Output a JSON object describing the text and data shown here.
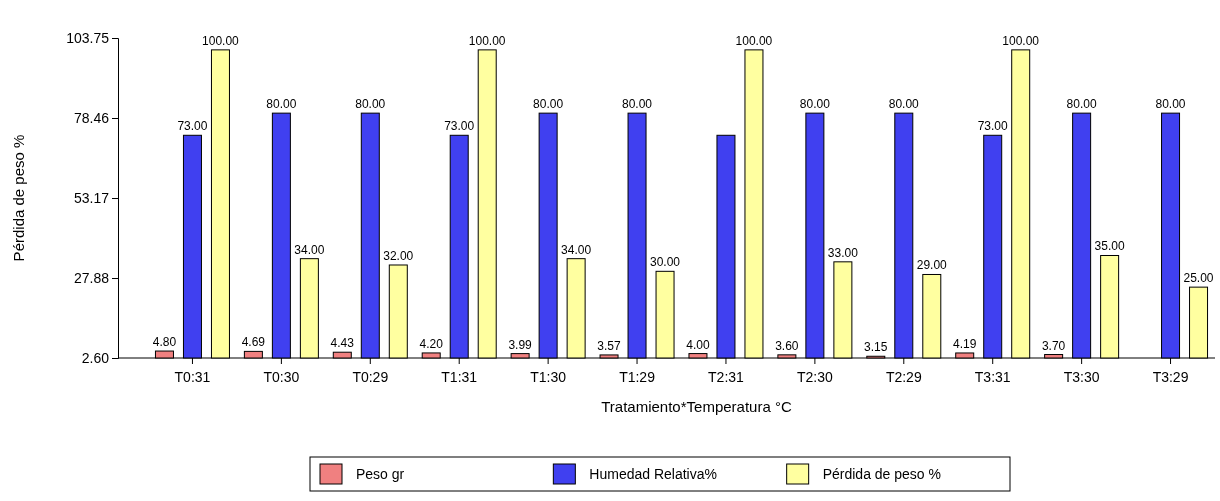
{
  "chart_data": {
    "type": "bar",
    "xlabel": "Tratamiento*Temperatura °C",
    "ylabel": "Pérdida de peso %",
    "categories": [
      "T0:31",
      "T0:30",
      "T0:29",
      "T1:31",
      "T1:30",
      "T1:29",
      "T2:31",
      "T2:30",
      "T2:29",
      "T3:31",
      "T3:30",
      "T3:29"
    ],
    "series": [
      {
        "name": "Peso gr",
        "color": "#f08080",
        "values": [
          4.8,
          4.69,
          4.43,
          4.2,
          3.99,
          3.57,
          4.0,
          3.6,
          3.15,
          4.19,
          3.7,
          null
        ],
        "value_labels": [
          "4.80",
          "4.69",
          "4.43",
          "4.20",
          "3.99",
          "3.57",
          "4.00",
          "3.60",
          "3.15",
          "4.19",
          "3.70",
          null
        ]
      },
      {
        "name": "Humedad Relativa%",
        "color": "#4040f0",
        "values": [
          73,
          80,
          80,
          73,
          80,
          80,
          73,
          80,
          80,
          73,
          80,
          80
        ],
        "value_labels": [
          "73.00",
          "80.00",
          "80.00",
          "73.00",
          "80.00",
          "80.00",
          null,
          "80.00",
          "80.00",
          "73.00",
          "80.00",
          "80.00"
        ]
      },
      {
        "name": "Pérdida de peso %",
        "color": "#ffffa0",
        "values": [
          100,
          34,
          32,
          100,
          34,
          30,
          100,
          33,
          29,
          100,
          35,
          25
        ],
        "value_labels": [
          "100.00",
          "34.00",
          "32.00",
          "100.00",
          "34.00",
          "30.00",
          "100.00",
          "33.00",
          "29.00",
          "100.00",
          "35.00",
          "25.00"
        ]
      }
    ],
    "ylim": [
      2.6,
      103.75
    ],
    "yticks": [
      {
        "value": 2.6,
        "label": "2.60"
      },
      {
        "value": 27.88,
        "label": "27.88"
      },
      {
        "value": 53.17,
        "label": "53.17"
      },
      {
        "value": 78.46,
        "label": "78.46"
      },
      {
        "value": 103.75,
        "label": "103.75"
      }
    ],
    "legend": "bottom"
  }
}
